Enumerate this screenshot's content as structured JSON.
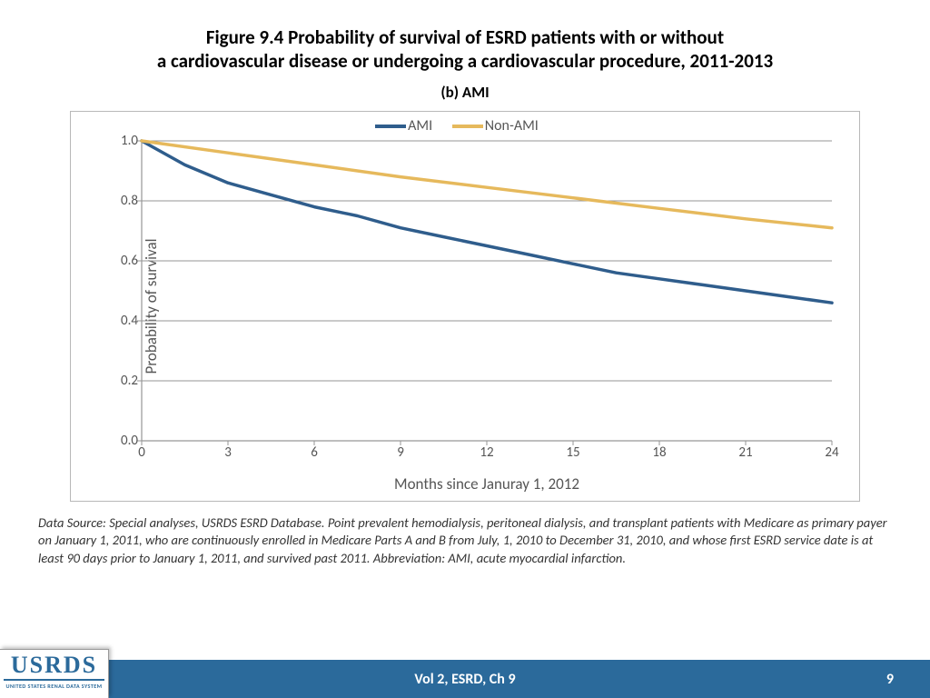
{
  "title": {
    "line1": "Figure 9.4 Probability of survival of ESRD patients with or without",
    "line2": "a cardiovascular disease or undergoing a cardiovascular procedure, 2011-2013",
    "subtitle": "(b) AMI",
    "title_fontsize": 21,
    "subtitle_fontsize": 17,
    "font_weight": "bold",
    "color": "#000000"
  },
  "chart": {
    "type": "line",
    "background_color": "#ffffff",
    "border_color": "#b8b8b8",
    "grid_color": "#969696",
    "axis_color": "#969696",
    "xlabel": "Months since Januray 1, 2012",
    "ylabel": "Probability of survival",
    "label_fontsize": 17,
    "label_color": "#555555",
    "tick_fontsize": 15,
    "xlim": [
      0,
      24
    ],
    "ylim": [
      0.0,
      1.0
    ],
    "xtick_step": 3,
    "ytick_step": 0.2,
    "xticks": [
      0,
      3,
      6,
      9,
      12,
      15,
      18,
      21,
      24
    ],
    "yticks": [
      "0.0",
      "0.2",
      "0.4",
      "0.6",
      "0.8",
      "1.0"
    ],
    "line_width": 3.5,
    "series": [
      {
        "name": "AMI",
        "color": "#2f5d8c",
        "x": [
          0,
          1.5,
          3,
          4.5,
          6,
          7.5,
          9,
          10.5,
          12,
          13.5,
          15,
          16.5,
          18,
          19.5,
          21,
          22.5,
          24
        ],
        "y": [
          1.0,
          0.92,
          0.86,
          0.82,
          0.78,
          0.75,
          0.71,
          0.68,
          0.65,
          0.62,
          0.59,
          0.56,
          0.54,
          0.52,
          0.5,
          0.48,
          0.46
        ]
      },
      {
        "name": "Non-AMI",
        "color": "#e6b95c",
        "x": [
          0,
          3,
          6,
          9,
          12,
          15,
          18,
          21,
          24
        ],
        "y": [
          1.0,
          0.96,
          0.92,
          0.88,
          0.845,
          0.81,
          0.775,
          0.74,
          0.71
        ]
      }
    ],
    "legend": {
      "position": "top-center",
      "fontsize": 16,
      "items": [
        {
          "label": "AMI",
          "color": "#2f5d8c"
        },
        {
          "label": "Non-AMI",
          "color": "#e6b95c"
        }
      ]
    }
  },
  "footnote": {
    "text": "Data Source: Special analyses, USRDS ESRD Database. Point prevalent hemodialysis, peritoneal dialysis, and transplant patients with Medicare as primary payer on January 1, 2011, who are continuously enrolled in Medicare Parts A and B from July, 1, 2010 to December 31, 2010, and whose first ESRD service date is at least 90 days prior to January 1, 2011, and survived past 2011. Abbreviation: AMI, acute myocardial infarction.",
    "font_style": "italic",
    "fontsize": 14.5,
    "color": "#333333"
  },
  "footer": {
    "bar_color": "#2b6a9b",
    "text_color": "#ffffff",
    "center_text": "Vol 2, ESRD, Ch 9",
    "page_number": "9",
    "fontsize": 16
  },
  "logo": {
    "main": "USRDS",
    "sub": "UNITED STATES RENAL DATA SYSTEM",
    "color": "#2b6a9b"
  }
}
